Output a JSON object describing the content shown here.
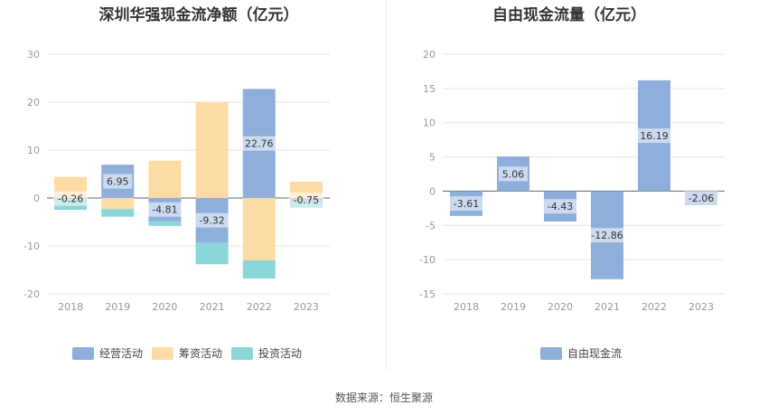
{
  "source": "数据来源：恒生聚源",
  "chart_data": [
    {
      "type": "bar",
      "title": "深圳华强现金流净额（亿元）",
      "stacked": true,
      "categories": [
        "2018",
        "2019",
        "2020",
        "2021",
        "2022",
        "2023"
      ],
      "ylim": [
        -20,
        30
      ],
      "yticks": [
        30,
        20,
        10,
        0,
        -10,
        -20
      ],
      "series": [
        {
          "name": "经营活动",
          "color": "#8eaedb",
          "values": [
            -0.26,
            6.95,
            -4.81,
            -9.32,
            22.76,
            -0.75
          ],
          "labels": [
            "-0.26",
            "6.95",
            "-4.81",
            "-9.32",
            "22.76",
            "-0.75"
          ]
        },
        {
          "name": "筹资活动",
          "color": "#fddba5",
          "values": [
            4.4,
            -2.3,
            7.8,
            20.0,
            -13.0,
            3.4
          ]
        },
        {
          "name": "投资活动",
          "color": "#8ad6d8",
          "values": [
            -2.2,
            -1.6,
            -1.0,
            -4.5,
            -3.8,
            -1.2
          ]
        }
      ],
      "legend": "bottom"
    },
    {
      "type": "bar",
      "title": "自由现金流量（亿元）",
      "categories": [
        "2018",
        "2019",
        "2020",
        "2021",
        "2022",
        "2023"
      ],
      "ylim": [
        -15,
        20
      ],
      "yticks": [
        20,
        15,
        10,
        5,
        0,
        -5,
        -10,
        -15
      ],
      "series": [
        {
          "name": "自由现金流",
          "color": "#8eaedb",
          "values": [
            -3.61,
            5.06,
            -4.43,
            -12.86,
            16.19,
            -2.06
          ],
          "labels": [
            "-3.61",
            "5.06",
            "-4.43",
            "-12.86",
            "16.19",
            "-2.06"
          ]
        }
      ],
      "legend": "bottom"
    }
  ]
}
